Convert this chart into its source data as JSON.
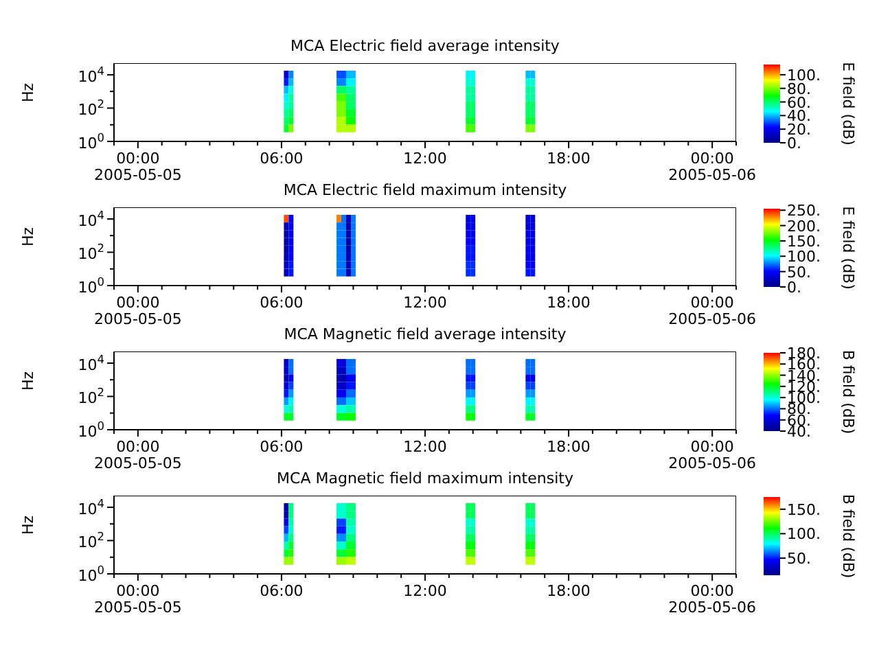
{
  "chart_data": [
    {
      "type": "heatmap",
      "log": "y",
      "title": "MCA  Electric field average intensity",
      "ylabel": "Hz",
      "clabel": "E field (dB)",
      "x": [
        6.2,
        6.4,
        6.6,
        8.2,
        8.4,
        8.6,
        8.8,
        9.0,
        9.2,
        13.6,
        13.8,
        14.0,
        14.2,
        16.1,
        16.3,
        16.5
      ],
      "y": [
        10400,
        3600,
        1240,
        428,
        148,
        51,
        17.5,
        6
      ],
      "xlim": [
        -1,
        25
      ],
      "ylim": [
        1,
        50000
      ],
      "xticks": [
        {
          "value": -1,
          "label": null
        },
        {
          "value": 0,
          "label": "00:00\n2005-05-05"
        },
        {
          "value": 1,
          "label": null
        },
        {
          "value": 2,
          "label": null
        },
        {
          "value": 3,
          "label": null
        },
        {
          "value": 4,
          "label": null
        },
        {
          "value": 5,
          "label": null
        },
        {
          "value": 6,
          "label": "06:00"
        },
        {
          "value": 7,
          "label": null
        },
        {
          "value": 8,
          "label": null
        },
        {
          "value": 9,
          "label": null
        },
        {
          "value": 10,
          "label": null
        },
        {
          "value": 11,
          "label": null
        },
        {
          "value": 12,
          "label": "12:00"
        },
        {
          "value": 13,
          "label": null
        },
        {
          "value": 14,
          "label": null
        },
        {
          "value": 15,
          "label": null
        },
        {
          "value": 16,
          "label": null
        },
        {
          "value": 17,
          "label": null
        },
        {
          "value": 18,
          "label": "18:00"
        },
        {
          "value": 19,
          "label": null
        },
        {
          "value": 20,
          "label": null
        },
        {
          "value": 21,
          "label": null
        },
        {
          "value": 22,
          "label": null
        },
        {
          "value": 23,
          "label": null
        },
        {
          "value": 24,
          "label": "00:00\n2005-05-06"
        },
        {
          "value": 25,
          "label": null
        }
      ],
      "yticks": [
        {
          "value": 1,
          "label": "10$^{0}$"
        },
        {
          "value": 10,
          "label": null
        },
        {
          "value": 100,
          "label": "10$^{2}$"
        },
        {
          "value": 1000,
          "label": null
        },
        {
          "value": 10000,
          "label": "10$^{4}$"
        }
      ],
      "clim": [
        0,
        115
      ],
      "cticks": [
        {
          "value": 0,
          "label": "0."
        },
        {
          "value": 20,
          "label": "20."
        },
        {
          "value": 40,
          "label": "40."
        },
        {
          "value": 60,
          "label": "60."
        },
        {
          "value": 80,
          "label": "80."
        },
        {
          "value": 100,
          "label": "100."
        }
      ],
      "colors": [
        "#000080",
        "#0000ff",
        "#00ffff",
        "#00ff00",
        "#ffff00",
        "#ff0000"
      ],
      "cells": [
        [
          15,
          35,
          null,
          null,
          30,
          30,
          40,
          40,
          null,
          null,
          45,
          45,
          null,
          null,
          40,
          40
        ],
        [
          25,
          40,
          null,
          null,
          35,
          35,
          45,
          45,
          null,
          null,
          50,
          50,
          null,
          null,
          50,
          50
        ],
        [
          40,
          50,
          null,
          null,
          60,
          60,
          55,
          55,
          null,
          null,
          55,
          55,
          null,
          null,
          55,
          55
        ],
        [
          45,
          55,
          null,
          null,
          75,
          75,
          60,
          60,
          null,
          null,
          55,
          55,
          null,
          null,
          55,
          55
        ],
        [
          50,
          55,
          null,
          null,
          80,
          80,
          60,
          60,
          null,
          null,
          60,
          60,
          null,
          null,
          60,
          60
        ],
        [
          55,
          60,
          null,
          null,
          80,
          80,
          65,
          65,
          null,
          null,
          60,
          60,
          null,
          null,
          60,
          60
        ],
        [
          60,
          65,
          null,
          null,
          85,
          85,
          70,
          70,
          null,
          null,
          65,
          65,
          null,
          null,
          65,
          65
        ],
        [
          65,
          80,
          null,
          null,
          85,
          85,
          85,
          85,
          null,
          null,
          75,
          75,
          null,
          null,
          80,
          80
        ]
      ]
    },
    {
      "type": "heatmap",
      "log": "y",
      "title": "MCA  Electric field maximum intensity",
      "ylabel": "Hz",
      "clabel": "E field (dB)",
      "x": [
        6.2,
        6.4,
        6.6,
        8.2,
        8.4,
        8.6,
        8.8,
        9.0,
        9.2,
        13.6,
        13.8,
        14.0,
        14.2,
        16.1,
        16.3,
        16.5
      ],
      "y": [
        10400,
        3600,
        1240,
        428,
        148,
        51,
        17.5,
        6
      ],
      "xlim": [
        -1,
        25
      ],
      "ylim": [
        1,
        50000
      ],
      "xticks": [
        {
          "value": -1,
          "label": null
        },
        {
          "value": 0,
          "label": "00:00\n2005-05-05"
        },
        {
          "value": 1,
          "label": null
        },
        {
          "value": 2,
          "label": null
        },
        {
          "value": 3,
          "label": null
        },
        {
          "value": 4,
          "label": null
        },
        {
          "value": 5,
          "label": null
        },
        {
          "value": 6,
          "label": "06:00"
        },
        {
          "value": 7,
          "label": null
        },
        {
          "value": 8,
          "label": null
        },
        {
          "value": 9,
          "label": null
        },
        {
          "value": 10,
          "label": null
        },
        {
          "value": 11,
          "label": null
        },
        {
          "value": 12,
          "label": "12:00"
        },
        {
          "value": 13,
          "label": null
        },
        {
          "value": 14,
          "label": null
        },
        {
          "value": 15,
          "label": null
        },
        {
          "value": 16,
          "label": null
        },
        {
          "value": 17,
          "label": null
        },
        {
          "value": 18,
          "label": "18:00"
        },
        {
          "value": 19,
          "label": null
        },
        {
          "value": 20,
          "label": null
        },
        {
          "value": 21,
          "label": null
        },
        {
          "value": 22,
          "label": null
        },
        {
          "value": 23,
          "label": null
        },
        {
          "value": 24,
          "label": "00:00\n2005-05-06"
        },
        {
          "value": 25,
          "label": null
        }
      ],
      "yticks": [
        {
          "value": 1,
          "label": "10$^{0}$"
        },
        {
          "value": 10,
          "label": null
        },
        {
          "value": 100,
          "label": "10$^{2}$"
        },
        {
          "value": 1000,
          "label": null
        },
        {
          "value": 10000,
          "label": "10$^{4}$"
        }
      ],
      "clim": [
        0,
        255
      ],
      "cticks": [
        {
          "value": 0,
          "label": "0."
        },
        {
          "value": 50,
          "label": "50."
        },
        {
          "value": 100,
          "label": "100."
        },
        {
          "value": 150,
          "label": "150."
        },
        {
          "value": 200,
          "label": "200."
        },
        {
          "value": 250,
          "label": "250."
        }
      ],
      "colors": [
        "#000080",
        "#0000ff",
        "#00ffff",
        "#00ff00",
        "#ffff00",
        "#ff0000"
      ],
      "cells": [
        [
          240,
          50,
          null,
          null,
          230,
          75,
          20,
          75,
          null,
          null,
          40,
          40,
          null,
          null,
          35,
          35
        ],
        [
          20,
          45,
          null,
          null,
          75,
          75,
          15,
          75,
          null,
          null,
          40,
          40,
          null,
          null,
          35,
          35
        ],
        [
          15,
          45,
          null,
          null,
          75,
          75,
          15,
          75,
          null,
          null,
          45,
          45,
          null,
          null,
          40,
          40
        ],
        [
          15,
          45,
          null,
          null,
          75,
          75,
          15,
          75,
          null,
          null,
          50,
          50,
          null,
          null,
          40,
          40
        ],
        [
          15,
          50,
          null,
          null,
          75,
          75,
          15,
          75,
          null,
          null,
          55,
          55,
          null,
          null,
          45,
          45
        ],
        [
          20,
          50,
          null,
          null,
          75,
          75,
          20,
          75,
          null,
          null,
          55,
          55,
          null,
          null,
          45,
          45
        ],
        [
          25,
          55,
          null,
          null,
          75,
          75,
          20,
          75,
          null,
          null,
          60,
          60,
          null,
          null,
          50,
          50
        ],
        [
          25,
          55,
          null,
          null,
          75,
          75,
          20,
          75,
          null,
          null,
          60,
          60,
          null,
          null,
          55,
          55
        ]
      ]
    },
    {
      "type": "heatmap",
      "log": "y",
      "title": "MCA  Magnetic field average intensity",
      "ylabel": "Hz",
      "clabel": "B field (dB)",
      "x": [
        6.2,
        6.4,
        6.6,
        8.2,
        8.4,
        8.6,
        8.8,
        9.0,
        9.2,
        13.6,
        13.8,
        14.0,
        14.2,
        16.1,
        16.3,
        16.5
      ],
      "y": [
        10400,
        3600,
        1240,
        428,
        148,
        51,
        17.5,
        6
      ],
      "xlim": [
        -1,
        25
      ],
      "ylim": [
        1,
        50000
      ],
      "xticks": [
        {
          "value": -1,
          "label": null
        },
        {
          "value": 0,
          "label": "00:00\n2005-05-05"
        },
        {
          "value": 1,
          "label": null
        },
        {
          "value": 2,
          "label": null
        },
        {
          "value": 3,
          "label": null
        },
        {
          "value": 4,
          "label": null
        },
        {
          "value": 5,
          "label": null
        },
        {
          "value": 6,
          "label": "06:00"
        },
        {
          "value": 7,
          "label": null
        },
        {
          "value": 8,
          "label": null
        },
        {
          "value": 9,
          "label": null
        },
        {
          "value": 10,
          "label": null
        },
        {
          "value": 11,
          "label": null
        },
        {
          "value": 12,
          "label": "12:00"
        },
        {
          "value": 13,
          "label": null
        },
        {
          "value": 14,
          "label": null
        },
        {
          "value": 15,
          "label": null
        },
        {
          "value": 16,
          "label": null
        },
        {
          "value": 17,
          "label": null
        },
        {
          "value": 18,
          "label": "18:00"
        },
        {
          "value": 19,
          "label": null
        },
        {
          "value": 20,
          "label": null
        },
        {
          "value": 21,
          "label": null
        },
        {
          "value": 22,
          "label": null
        },
        {
          "value": 23,
          "label": null
        },
        {
          "value": 24,
          "label": "00:00\n2005-05-06"
        },
        {
          "value": 25,
          "label": null
        }
      ],
      "yticks": [
        {
          "value": 1,
          "label": "10$^{0}$"
        },
        {
          "value": 10,
          "label": null
        },
        {
          "value": 100,
          "label": "10$^{2}$"
        },
        {
          "value": 1000,
          "label": null
        },
        {
          "value": 10000,
          "label": "10$^{4}$"
        }
      ],
      "clim": [
        40,
        180
      ],
      "cticks": [
        {
          "value": 40,
          "label": "40."
        },
        {
          "value": 60,
          "label": "60."
        },
        {
          "value": 80,
          "label": "80."
        },
        {
          "value": 100,
          "label": "100."
        },
        {
          "value": 120,
          "label": "120."
        },
        {
          "value": 140,
          "label": "140."
        },
        {
          "value": 160,
          "label": "160."
        },
        {
          "value": 180,
          "label": "180."
        }
      ],
      "colors": [
        "#000080",
        "#0000ff",
        "#00ffff",
        "#00ff00",
        "#ffff00",
        "#ff0000"
      ],
      "cells": [
        [
          55,
          80,
          null,
          null,
          60,
          60,
          80,
          80,
          null,
          null,
          80,
          80,
          null,
          null,
          80,
          80
        ],
        [
          55,
          80,
          null,
          null,
          55,
          55,
          80,
          80,
          null,
          null,
          80,
          80,
          null,
          null,
          80,
          80
        ],
        [
          50,
          65,
          null,
          null,
          50,
          50,
          65,
          65,
          null,
          null,
          70,
          70,
          null,
          null,
          65,
          65
        ],
        [
          60,
          75,
          null,
          null,
          55,
          55,
          70,
          70,
          null,
          null,
          75,
          75,
          null,
          null,
          75,
          75
        ],
        [
          70,
          85,
          null,
          null,
          65,
          65,
          80,
          80,
          null,
          null,
          85,
          85,
          null,
          null,
          85,
          85
        ],
        [
          85,
          95,
          null,
          null,
          80,
          80,
          90,
          90,
          null,
          null,
          95,
          95,
          null,
          null,
          95,
          95
        ],
        [
          100,
          105,
          null,
          null,
          100,
          100,
          105,
          105,
          null,
          null,
          110,
          110,
          null,
          null,
          105,
          105
        ],
        [
          120,
          120,
          null,
          null,
          120,
          120,
          125,
          125,
          null,
          null,
          125,
          125,
          null,
          null,
          120,
          120
        ]
      ]
    },
    {
      "type": "heatmap",
      "log": "y",
      "title": "MCA  Magnetic field maximum intensity",
      "ylabel": "Hz",
      "clabel": "B field (dB)",
      "x": [
        6.2,
        6.4,
        6.6,
        8.2,
        8.4,
        8.6,
        8.8,
        9.0,
        9.2,
        13.6,
        13.8,
        14.0,
        14.2,
        16.1,
        16.3,
        16.5
      ],
      "y": [
        10400,
        3600,
        1240,
        428,
        148,
        51,
        17.5,
        6
      ],
      "xlim": [
        -1,
        25
      ],
      "ylim": [
        1,
        50000
      ],
      "xticks": [
        {
          "value": -1,
          "label": null
        },
        {
          "value": 0,
          "label": "00:00\n2005-05-05"
        },
        {
          "value": 1,
          "label": null
        },
        {
          "value": 2,
          "label": null
        },
        {
          "value": 3,
          "label": null
        },
        {
          "value": 4,
          "label": null
        },
        {
          "value": 5,
          "label": null
        },
        {
          "value": 6,
          "label": "06:00"
        },
        {
          "value": 7,
          "label": null
        },
        {
          "value": 8,
          "label": null
        },
        {
          "value": 9,
          "label": null
        },
        {
          "value": 10,
          "label": null
        },
        {
          "value": 11,
          "label": null
        },
        {
          "value": 12,
          "label": "12:00"
        },
        {
          "value": 13,
          "label": null
        },
        {
          "value": 14,
          "label": null
        },
        {
          "value": 15,
          "label": null
        },
        {
          "value": 16,
          "label": null
        },
        {
          "value": 17,
          "label": null
        },
        {
          "value": 18,
          "label": "18:00"
        },
        {
          "value": 19,
          "label": null
        },
        {
          "value": 20,
          "label": null
        },
        {
          "value": 21,
          "label": null
        },
        {
          "value": 22,
          "label": null
        },
        {
          "value": 23,
          "label": null
        },
        {
          "value": 24,
          "label": "00:00\n2005-05-06"
        },
        {
          "value": 25,
          "label": null
        }
      ],
      "yticks": [
        {
          "value": 1,
          "label": "10$^{0}$"
        },
        {
          "value": 10,
          "label": null
        },
        {
          "value": 100,
          "label": "10$^{2}$"
        },
        {
          "value": 1000,
          "label": null
        },
        {
          "value": 10000,
          "label": "10$^{4}$"
        }
      ],
      "clim": [
        15,
        175
      ],
      "cticks": [
        {
          "value": 50,
          "label": "50."
        },
        {
          "value": 100,
          "label": "100."
        },
        {
          "value": 150,
          "label": "150."
        }
      ],
      "colors": [
        "#000080",
        "#0000ff",
        "#00ffff",
        "#00ff00",
        "#ffff00",
        "#ff0000"
      ],
      "cells": [
        [
          25,
          95,
          null,
          null,
          85,
          85,
          95,
          95,
          null,
          null,
          100,
          100,
          null,
          null,
          100,
          100
        ],
        [
          25,
          95,
          null,
          null,
          85,
          85,
          95,
          95,
          null,
          null,
          100,
          100,
          null,
          null,
          100,
          100
        ],
        [
          40,
          90,
          null,
          null,
          55,
          55,
          90,
          90,
          null,
          null,
          85,
          85,
          null,
          null,
          85,
          85
        ],
        [
          55,
          85,
          null,
          null,
          50,
          50,
          85,
          85,
          null,
          null,
          90,
          90,
          null,
          null,
          90,
          90
        ],
        [
          70,
          95,
          null,
          null,
          65,
          65,
          95,
          95,
          null,
          null,
          100,
          100,
          null,
          null,
          100,
          100
        ],
        [
          90,
          105,
          null,
          null,
          85,
          85,
          105,
          105,
          null,
          null,
          110,
          110,
          null,
          null,
          110,
          110
        ],
        [
          105,
          115,
          null,
          null,
          105,
          105,
          115,
          115,
          null,
          null,
          120,
          120,
          null,
          null,
          120,
          120
        ],
        [
          130,
          130,
          null,
          null,
          130,
          130,
          135,
          135,
          null,
          null,
          135,
          135,
          null,
          null,
          135,
          135
        ]
      ]
    }
  ]
}
